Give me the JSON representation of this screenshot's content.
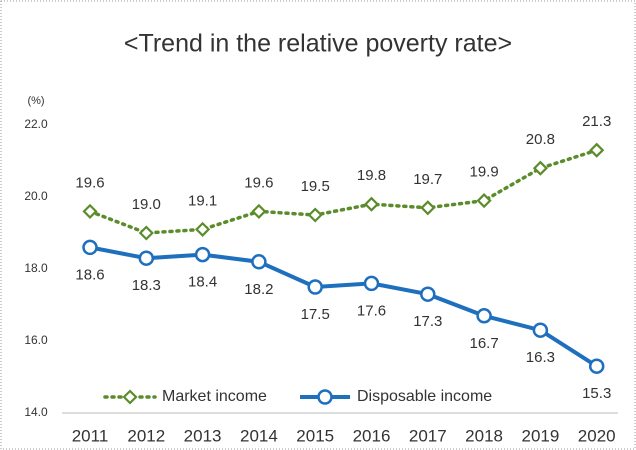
{
  "chart_data": {
    "type": "line",
    "title": "<Trend in the relative poverty rate>",
    "y_label": "(%)",
    "categories": [
      "2011",
      "2012",
      "2013",
      "2014",
      "2015",
      "2016",
      "2017",
      "2018",
      "2019",
      "2020"
    ],
    "series": [
      {
        "name": "Market income",
        "color": "#5b8c2a",
        "marker": "diamond",
        "line": "dotted",
        "values": [
          19.6,
          19.0,
          19.1,
          19.6,
          19.5,
          19.8,
          19.7,
          19.9,
          20.8,
          21.3
        ],
        "value_labels": [
          "19.6",
          "19.0",
          "19.1",
          "19.6",
          "19.5",
          "19.8",
          "19.7",
          "19.9",
          "20.8",
          "21.3"
        ]
      },
      {
        "name": "Disposable income",
        "color": "#1f6fbf",
        "marker": "circle",
        "line": "solid",
        "values": [
          18.6,
          18.3,
          18.4,
          18.2,
          17.5,
          17.6,
          17.3,
          16.7,
          16.3,
          15.3
        ],
        "value_labels": [
          "18.6",
          "18.3",
          "18.4",
          "18.2",
          "17.5",
          "17.6",
          "17.3",
          "16.7",
          "16.3",
          "15.3"
        ]
      }
    ],
    "ylim": [
      14,
      22
    ],
    "yticks": [
      {
        "value": 14,
        "label": "14.0"
      },
      {
        "value": 16,
        "label": "16.0"
      },
      {
        "value": 18,
        "label": "18.0"
      },
      {
        "value": 20,
        "label": "20.0"
      },
      {
        "value": 22,
        "label": "22.0"
      }
    ],
    "grid": false,
    "legend": "bottom"
  }
}
